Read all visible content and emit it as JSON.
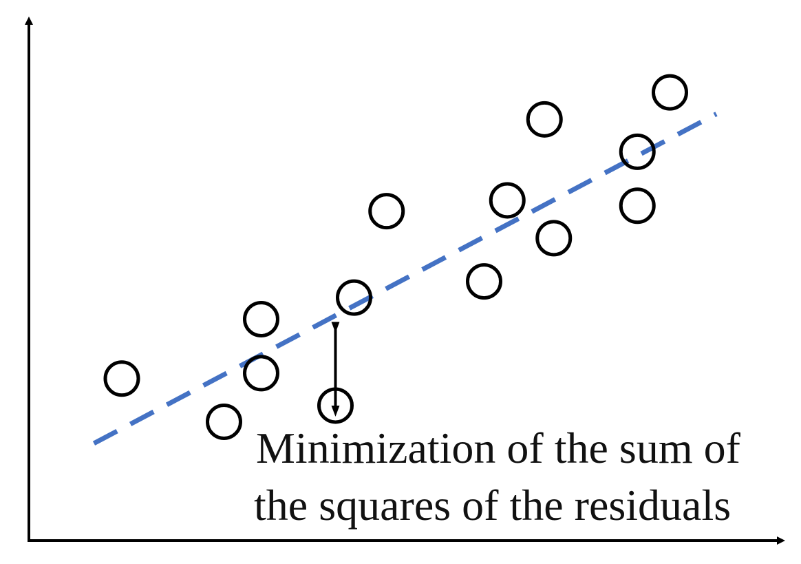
{
  "chart_data": {
    "type": "scatter",
    "title": "",
    "xlabel": "",
    "ylabel": "",
    "grid": false,
    "points": [
      {
        "x": 1.0,
        "y": 3.0
      },
      {
        "x": 2.1,
        "y": 2.2
      },
      {
        "x": 2.5,
        "y": 3.1
      },
      {
        "x": 2.5,
        "y": 4.1
      },
      {
        "x": 3.3,
        "y": 2.5
      },
      {
        "x": 3.5,
        "y": 4.5
      },
      {
        "x": 3.85,
        "y": 6.1
      },
      {
        "x": 4.9,
        "y": 4.8
      },
      {
        "x": 5.15,
        "y": 6.3
      },
      {
        "x": 5.55,
        "y": 7.8
      },
      {
        "x": 5.65,
        "y": 5.6
      },
      {
        "x": 6.55,
        "y": 7.2
      },
      {
        "x": 6.55,
        "y": 6.2
      },
      {
        "x": 6.9,
        "y": 8.3
      }
    ],
    "fit_line": {
      "x": [
        0.7,
        7.4
      ],
      "y": [
        1.8,
        7.9
      ],
      "style": "dashed",
      "color": "#4472c4"
    },
    "residual": {
      "x": 3.3,
      "y_from": 4.0,
      "y_to": 2.5
    },
    "xlim": [
      0,
      8
    ],
    "ylim": [
      0,
      9.5
    ],
    "annotation": [
      "Minimization of the sum of",
      "the squares of the residuals"
    ]
  },
  "colors": {
    "axis": "#000000",
    "marker": "#000000",
    "fit_line": "#4472c4"
  }
}
